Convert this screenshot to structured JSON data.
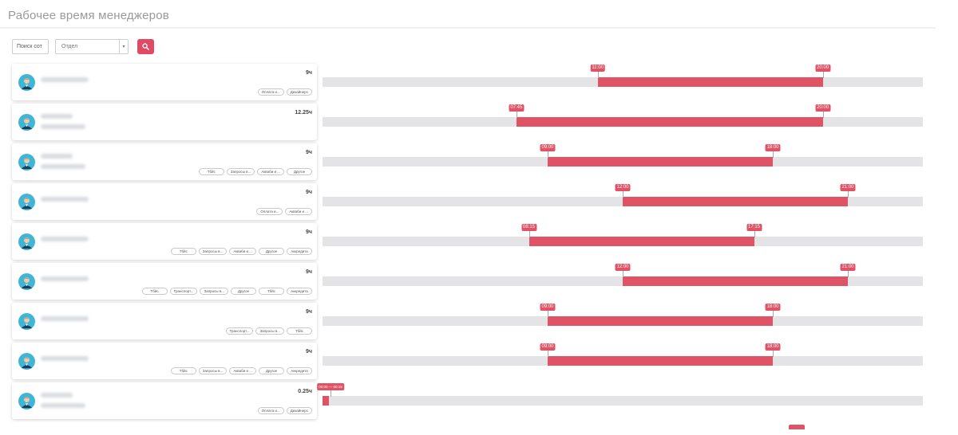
{
  "header": {
    "title": "Рабочее время менеджеров"
  },
  "filters": {
    "search_value": "Поиск сот",
    "department_label": "Отдел",
    "caret_glyph": "▾"
  },
  "colors": {
    "accent": "#e04a64",
    "bar": "#e05265",
    "track": "#e4e4e6"
  },
  "timeline": {
    "day_start_minutes": 0,
    "day_end_minutes": 1440
  },
  "managers": [
    {
      "hours": "9ч",
      "tags": [
        "Оплата и...",
        "Дизайнерс"
      ],
      "start": "11:00",
      "end": "20:00",
      "start_min": 660,
      "end_min": 1200,
      "name_lines": 1
    },
    {
      "hours": "12.25ч",
      "tags": [],
      "start": "07:45",
      "end": "20:00",
      "start_min": 465,
      "end_min": 1200,
      "name_lines": 2
    },
    {
      "hours": "9ч",
      "tags": [
        "Тбйс",
        "Запросы в...",
        "Акваби и ...",
        "Другое"
      ],
      "start": "09:00",
      "end": "18:00",
      "start_min": 540,
      "end_min": 1080,
      "name_lines": 2
    },
    {
      "hours": "9ч",
      "tags": [
        "Оплата и...",
        "Акваби и ..."
      ],
      "start": "12:00",
      "end": "21:00",
      "start_min": 720,
      "end_min": 1260,
      "name_lines": 1
    },
    {
      "hours": "9ч",
      "tags": [
        "Тбйс",
        "Запросы в...",
        "Акваби и ...",
        "Другое",
        "Аккредита"
      ],
      "start": "08:15",
      "end": "17:15",
      "start_min": 495,
      "end_min": 1035,
      "name_lines": 1
    },
    {
      "hours": "9ч",
      "tags": [
        "Тбйс",
        "Транспорт...",
        "Запросы в...",
        "Другое",
        "Тбйс",
        "Аккредита"
      ],
      "start": "12:00",
      "end": "21:00",
      "start_min": 720,
      "end_min": 1260,
      "name_lines": 1
    },
    {
      "hours": "9ч",
      "tags": [
        "Транспорт...",
        "Запросы в...",
        "Тбйс"
      ],
      "start": "09:00",
      "end": "18:00",
      "start_min": 540,
      "end_min": 1080,
      "name_lines": 1
    },
    {
      "hours": "9ч",
      "tags": [
        "Тбйс",
        "Запросы в...",
        "Акваби и ...",
        "Другое",
        "Аккредита"
      ],
      "start": "09:00",
      "end": "18:00",
      "start_min": 540,
      "end_min": 1080,
      "name_lines": 1
    },
    {
      "hours": "0.25ч",
      "tags": [
        "Оплата и...",
        "Дизайнерс"
      ],
      "start": "00:00 — 00:15",
      "end": "",
      "start_min": 0,
      "end_min": 15,
      "name_lines": 2,
      "combined_label": true
    }
  ]
}
